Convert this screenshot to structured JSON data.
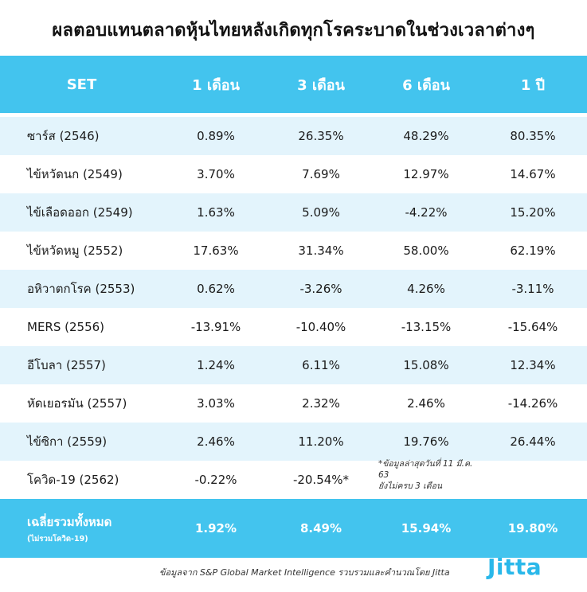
{
  "title": "ผลตอบแทนตลาดหุ้นไทยหลังเกิดทุกโรคระบาดในช่วงเวลาต่างๆ",
  "columns": [
    "SET",
    "1 เดือน",
    "3 เดือน",
    "6 เดือน",
    "1 ปี"
  ],
  "rows": [
    {
      "name": "ซาร์ส (2546)",
      "m1": "0.89%",
      "m3": "26.35%",
      "m6": "48.29%",
      "y1": "80.35%"
    },
    {
      "name": "ไข้หวัดนก (2549)",
      "m1": "3.70%",
      "m3": "7.69%",
      "m6": "12.97%",
      "y1": "14.67%"
    },
    {
      "name": "ไข้เลือดออก (2549)",
      "m1": "1.63%",
      "m3": "5.09%",
      "m6": "-4.22%",
      "y1": "15.20%"
    },
    {
      "name": "ไข้หวัดหมู (2552)",
      "m1": "17.63%",
      "m3": "31.34%",
      "m6": "58.00%",
      "y1": "62.19%"
    },
    {
      "name": "อหิวาตกโรค (2553)",
      "m1": "0.62%",
      "m3": "-3.26%",
      "m6": "4.26%",
      "y1": "-3.11%"
    },
    {
      "name": "MERS (2556)",
      "m1": "-13.91%",
      "m3": "-10.40%",
      "m6": "-13.15%",
      "y1": "-15.64%"
    },
    {
      "name": "อีโบลา (2557)",
      "m1": "1.24%",
      "m3": "6.11%",
      "m6": "15.08%",
      "y1": "12.34%"
    },
    {
      "name": "หัดเยอรมัน (2557)",
      "m1": "3.03%",
      "m3": "2.32%",
      "m6": "2.46%",
      "y1": "-14.26%"
    },
    {
      "name": "ไข้ซิกา (2559)",
      "m1": "2.46%",
      "m3": "11.20%",
      "m6": "19.76%",
      "y1": "26.44%"
    }
  ],
  "covid": {
    "name": "โควิด-19 (2562)",
    "m1": "-0.22%",
    "m3": "-20.54%*",
    "note_line1": "*ข้อมูลล่าสุดวันที่ 11 มี.ค. 63",
    "note_line2": "ยังไม่ครบ 3 เดือน"
  },
  "average": {
    "title": "เฉลี่ยรวมทั้งหมด",
    "subtitle": "(ไม่รวมโควิด-19)",
    "m1": "1.92%",
    "m3": "8.49%",
    "m6": "15.94%",
    "y1": "19.80%"
  },
  "footer": {
    "source": "ข้อมูลจาก S&P Global Market Intelligence รวบรวมและคำนวณโดย Jitta",
    "logo": "Jitta"
  },
  "colors": {
    "header_bg": "#43c4ee",
    "stripe_bg": "#e3f4fc",
    "logo": "#2ab8ea"
  }
}
